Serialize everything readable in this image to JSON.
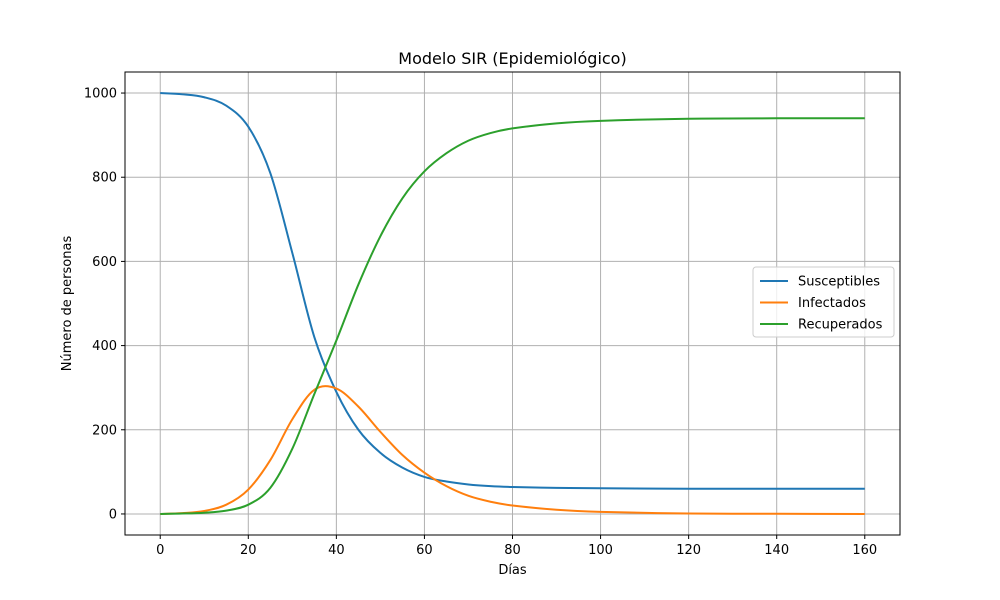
{
  "chart_data": {
    "type": "line",
    "title": "Modelo SIR (Epidemiológico)",
    "xlabel": "Días",
    "ylabel": "Número de personas",
    "xlim": [
      -8,
      168
    ],
    "ylim": [
      -50,
      1050
    ],
    "xticks": [
      0,
      20,
      40,
      60,
      80,
      100,
      120,
      140,
      160
    ],
    "yticks": [
      0,
      200,
      400,
      600,
      800,
      1000
    ],
    "grid": true,
    "legend_position": "center-right",
    "x": [
      0,
      5,
      10,
      15,
      20,
      25,
      30,
      35,
      40,
      45,
      50,
      55,
      60,
      65,
      70,
      75,
      80,
      90,
      100,
      120,
      140,
      160
    ],
    "series": [
      {
        "name": "Susceptibles",
        "color": "#1f77b4",
        "values": [
          1000,
          997,
          990,
          970,
          920,
          810,
          620,
          420,
          290,
          200,
          145,
          110,
          88,
          77,
          70,
          66,
          64,
          62,
          61,
          60,
          60,
          60
        ]
      },
      {
        "name": "Infectados",
        "color": "#ff7f0e",
        "values": [
          0,
          2,
          7,
          22,
          58,
          128,
          225,
          295,
          298,
          255,
          195,
          140,
          98,
          66,
          43,
          29,
          20,
          10,
          5,
          1,
          0.5,
          0
        ]
      },
      {
        "name": "Recuperados",
        "color": "#2ca02c",
        "values": [
          0,
          1,
          3,
          8,
          22,
          62,
          155,
          285,
          412,
          545,
          660,
          750,
          814,
          857,
          887,
          905,
          916,
          928,
          934,
          939,
          940,
          940
        ]
      }
    ]
  }
}
